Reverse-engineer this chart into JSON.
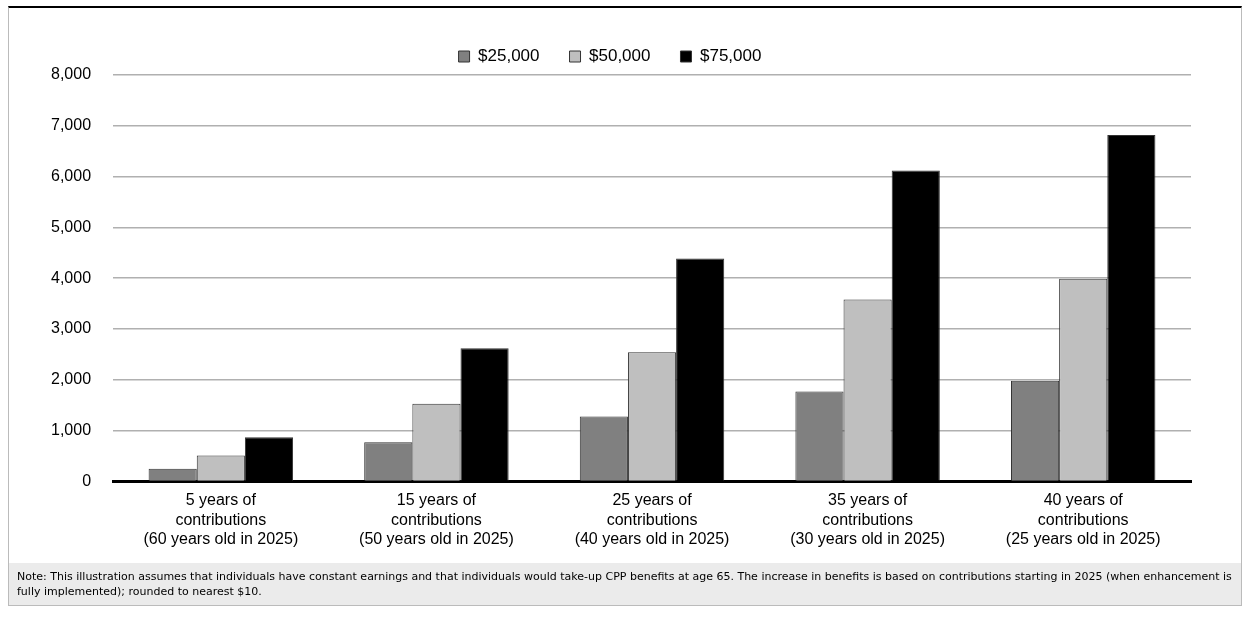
{
  "chart_data": {
    "type": "bar",
    "categories": [
      "5 years of\ncontributions\n(60 years old in 2025)",
      "15 years of\ncontributions\n(50 years old in 2025)",
      "25 years of\ncontributions\n(40 years old in 2025)",
      "35 years of\ncontributions\n(30 years old in 2025)",
      "40 years of\ncontributions\n(25 years old in 2025)"
    ],
    "series": [
      {
        "name": "$25,000",
        "color": "#808080",
        "values": [
          250,
          770,
          1280,
          1770,
          1980
        ]
      },
      {
        "name": "$50,000",
        "color": "#bfbfbf",
        "values": [
          510,
          1530,
          2540,
          3580,
          3990
        ]
      },
      {
        "name": "$75,000",
        "color": "#000000",
        "values": [
          870,
          2620,
          4390,
          6120,
          6820
        ]
      }
    ],
    "ylim": [
      0,
      8000
    ],
    "yticks": [
      {
        "value": 0,
        "label": "0"
      },
      {
        "value": 1000,
        "label": "1,000"
      },
      {
        "value": 2000,
        "label": "2,000"
      },
      {
        "value": 3000,
        "label": "3,000"
      },
      {
        "value": 4000,
        "label": "4,000"
      },
      {
        "value": 5000,
        "label": "5,000"
      },
      {
        "value": 6000,
        "label": "6,000"
      },
      {
        "value": 7000,
        "label": "7,000"
      },
      {
        "value": 8000,
        "label": "8,000"
      }
    ],
    "grid": "y",
    "legend": "top",
    "annotations": [
      "Note: This illustration assumes that individuals have constant earnings and that individuals would take-up CPP benefits at age 65. The increase in benefits is based on contributions starting in 2025 (when enhancement is fully implemented); rounded to nearest $10."
    ]
  }
}
